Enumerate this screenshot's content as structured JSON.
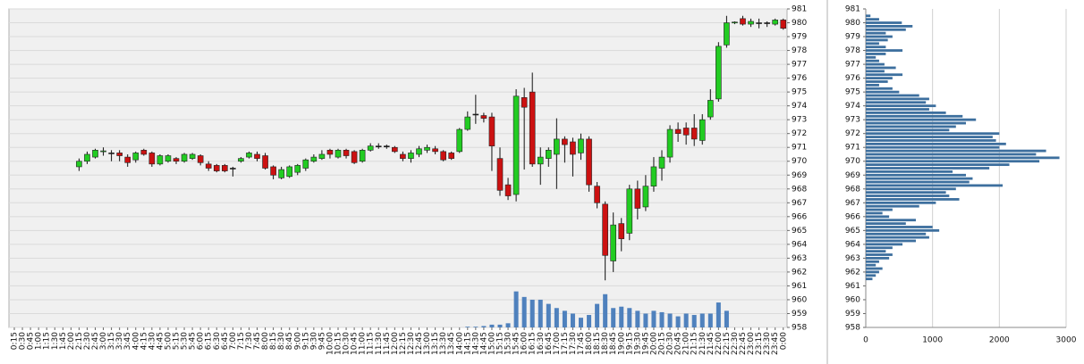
{
  "chart_data": [
    {
      "type": "candlestick",
      "x": [
        "0:15",
        "0:30",
        "0:45",
        "1:00",
        "1:15",
        "1:30",
        "1:45",
        "2:00",
        "2:15",
        "2:30",
        "2:45",
        "3:00",
        "3:15",
        "3:30",
        "3:45",
        "4:00",
        "4:15",
        "4:30",
        "4:45",
        "5:00",
        "5:15",
        "5:30",
        "5:45",
        "6:00",
        "6:15",
        "6:30",
        "6:45",
        "7:00",
        "7:15",
        "7:30",
        "7:45",
        "8:00",
        "8:15",
        "8:30",
        "8:45",
        "9:00",
        "9:15",
        "9:30",
        "9:45",
        "10:00",
        "10:15",
        "10:30",
        "10:45",
        "11:00",
        "11:15",
        "11:30",
        "11:45",
        "12:00",
        "12:15",
        "12:30",
        "12:45",
        "13:00",
        "13:15",
        "13:30",
        "13:45",
        "14:00",
        "14:15",
        "14:30",
        "14:45",
        "15:00",
        "15:15",
        "15:30",
        "15:45",
        "16:00",
        "16:15",
        "16:30",
        "16:45",
        "17:00",
        "17:15",
        "17:30",
        "17:45",
        "18:00",
        "18:15",
        "18:30",
        "18:45",
        "19:00",
        "19:15",
        "19:30",
        "19:45",
        "20:00",
        "20:15",
        "20:30",
        "20:45",
        "21:00",
        "21:15",
        "21:30",
        "21:45",
        "22:00",
        "22:15",
        "22:30",
        "22:45",
        "23:00",
        "23:15",
        "23:30",
        "23:45",
        "0:00"
      ],
      "open": [
        null,
        null,
        null,
        null,
        null,
        null,
        null,
        null,
        969.6,
        970.0,
        970.3,
        970.7,
        970.6,
        970.6,
        970.3,
        970.1,
        970.8,
        970.6,
        969.8,
        970.0,
        970.2,
        970.0,
        970.2,
        970.4,
        969.8,
        969.7,
        969.7,
        969.5,
        970.0,
        970.3,
        970.5,
        970.4,
        969.6,
        968.8,
        968.9,
        969.2,
        969.5,
        970.0,
        970.2,
        970.8,
        970.3,
        970.8,
        970.7,
        970.0,
        970.8,
        971.1,
        971.1,
        971.0,
        970.5,
        970.2,
        970.5,
        970.8,
        970.9,
        970.7,
        970.6,
        970.7,
        972.3,
        973.4,
        973.3,
        973.2,
        970.2,
        968.3,
        967.6,
        974.6,
        975.0,
        969.8,
        970.2,
        970.5,
        971.6,
        971.4,
        970.6,
        971.6,
        968.2,
        966.9,
        962.8,
        965.5,
        964.8,
        968.0,
        966.7,
        968.2,
        969.5,
        970.3,
        972.3,
        972.4,
        972.4,
        971.5,
        973.2,
        974.5,
        978.4,
        980.0,
        980.3,
        979.9,
        980.0,
        980.0,
        979.9,
        980.2
      ],
      "high": [
        null,
        null,
        null,
        null,
        null,
        null,
        null,
        null,
        970.2,
        970.7,
        970.9,
        971.0,
        970.8,
        970.8,
        970.5,
        970.7,
        970.9,
        970.7,
        970.5,
        970.5,
        970.3,
        970.6,
        970.6,
        970.5,
        970.0,
        969.8,
        969.8,
        969.6,
        970.3,
        970.7,
        970.7,
        970.6,
        969.7,
        969.6,
        969.7,
        969.8,
        970.2,
        970.5,
        970.8,
        970.9,
        970.9,
        970.9,
        970.8,
        970.9,
        971.3,
        971.3,
        971.2,
        971.1,
        970.7,
        970.8,
        971.1,
        971.2,
        971.1,
        970.8,
        970.7,
        972.4,
        973.6,
        974.8,
        973.5,
        973.5,
        971.0,
        968.8,
        975.2,
        975.3,
        976.4,
        971.0,
        971.0,
        973.1,
        971.8,
        971.7,
        972.0,
        971.8,
        968.5,
        967.1,
        966.3,
        965.9,
        968.3,
        968.6,
        969.0,
        970.3,
        970.8,
        972.6,
        972.8,
        972.8,
        973.4,
        973.4,
        975.2,
        978.6,
        980.5,
        980.1,
        980.5,
        980.3,
        980.3,
        980.1,
        980.3,
        980.3
      ],
      "low": [
        null,
        null,
        null,
        null,
        null,
        null,
        null,
        null,
        969.3,
        969.8,
        970.2,
        970.4,
        970.0,
        970.0,
        969.6,
        969.9,
        970.4,
        969.6,
        969.7,
        969.9,
        969.8,
        969.9,
        970.1,
        969.7,
        969.3,
        969.2,
        969.2,
        968.9,
        969.9,
        970.2,
        970.0,
        969.4,
        968.7,
        968.7,
        968.8,
        969.0,
        969.3,
        969.9,
        970.1,
        970.2,
        970.2,
        970.2,
        969.8,
        969.9,
        970.7,
        970.9,
        970.9,
        970.6,
        970.0,
        969.9,
        970.3,
        970.6,
        970.5,
        970.0,
        970.1,
        970.6,
        972.2,
        972.7,
        972.8,
        969.3,
        967.5,
        967.2,
        967.1,
        969.4,
        969.6,
        968.3,
        969.6,
        968.0,
        969.9,
        968.9,
        970.1,
        967.8,
        966.6,
        961.4,
        962.0,
        963.5,
        964.3,
        965.8,
        966.4,
        967.8,
        968.6,
        969.9,
        971.4,
        971.2,
        971.1,
        971.2,
        973.0,
        974.3,
        978.2,
        979.9,
        979.8,
        979.7,
        979.6,
        979.7,
        979.8,
        979.5
      ],
      "close": [
        null,
        null,
        null,
        null,
        null,
        null,
        null,
        null,
        970.0,
        970.5,
        970.8,
        970.75,
        970.6,
        970.4,
        969.9,
        970.6,
        970.5,
        969.8,
        970.4,
        970.4,
        970.0,
        970.5,
        970.5,
        969.9,
        969.5,
        969.3,
        969.3,
        969.5,
        970.2,
        970.6,
        970.2,
        969.5,
        969.0,
        969.4,
        969.6,
        969.7,
        970.1,
        970.3,
        970.5,
        970.5,
        970.8,
        970.4,
        969.9,
        970.8,
        971.1,
        971.1,
        971.1,
        970.7,
        970.2,
        970.6,
        970.9,
        971.0,
        970.7,
        970.1,
        970.2,
        972.3,
        973.2,
        973.4,
        973.1,
        971.1,
        967.9,
        967.5,
        974.7,
        973.9,
        969.8,
        970.3,
        970.8,
        971.6,
        971.2,
        970.5,
        971.6,
        968.3,
        967.0,
        963.2,
        965.4,
        964.4,
        968.0,
        966.6,
        968.2,
        969.6,
        970.3,
        972.3,
        972.0,
        971.9,
        971.6,
        973.0,
        974.4,
        978.3,
        980.0,
        980.05,
        979.9,
        980.1,
        980.0,
        980.0,
        980.2,
        979.6
      ],
      "volume": [
        null,
        null,
        null,
        null,
        null,
        null,
        null,
        null,
        null,
        null,
        null,
        null,
        null,
        null,
        null,
        null,
        null,
        null,
        null,
        null,
        null,
        null,
        null,
        null,
        null,
        null,
        null,
        null,
        null,
        null,
        null,
        null,
        null,
        null,
        null,
        null,
        null,
        null,
        null,
        null,
        null,
        null,
        null,
        null,
        null,
        null,
        null,
        null,
        null,
        null,
        null,
        null,
        null,
        null,
        null,
        null,
        958.05,
        958.05,
        958.1,
        958.2,
        958.2,
        958.3,
        960.6,
        960.2,
        960.0,
        960.0,
        959.7,
        959.4,
        959.2,
        959.0,
        958.7,
        958.9,
        959.7,
        960.4,
        959.4,
        959.5,
        959.4,
        959.2,
        959.0,
        959.2,
        959.1,
        959.0,
        958.8,
        959.0,
        958.9,
        959.0,
        959.0,
        959.8,
        959.2,
        null,
        null,
        null,
        null,
        null,
        null,
        null
      ],
      "up_color": "#22cc22",
      "down_color": "#cc1111",
      "volume_color": "#4f81bd",
      "ylim": [
        958,
        981
      ],
      "yticks": [
        958,
        959,
        960,
        961,
        962,
        963,
        964,
        965,
        966,
        967,
        968,
        969,
        970,
        971,
        972,
        973,
        974,
        975,
        976,
        977,
        978,
        979,
        980,
        981
      ],
      "grid": true
    },
    {
      "type": "barh",
      "y": [
        980.5,
        980.25,
        980,
        979.75,
        979.5,
        979.25,
        979,
        978.75,
        978.5,
        978.25,
        978,
        977.75,
        977.5,
        977.25,
        977,
        976.75,
        976.5,
        976.25,
        976,
        975.75,
        975.5,
        975.25,
        975,
        974.75,
        974.5,
        974.25,
        974,
        973.75,
        973.5,
        973.25,
        973,
        972.75,
        972.5,
        972.25,
        972,
        971.75,
        971.5,
        971.25,
        971,
        970.75,
        970.5,
        970.25,
        970,
        969.75,
        969.5,
        969.25,
        969,
        968.75,
        968.5,
        968.25,
        968,
        967.75,
        967.5,
        967.25,
        967,
        966.75,
        966.5,
        966.25,
        966,
        965.75,
        965.5,
        965.25,
        965,
        964.75,
        964.5,
        964.25,
        964,
        963.75,
        963.5,
        963.25,
        963,
        962.75,
        962.5,
        962.25,
        962,
        961.75,
        961.5
      ],
      "values": [
        70,
        200,
        540,
        700,
        600,
        300,
        400,
        330,
        200,
        300,
        550,
        300,
        150,
        200,
        280,
        450,
        280,
        550,
        400,
        330,
        200,
        400,
        500,
        800,
        950,
        900,
        1050,
        950,
        1200,
        1450,
        1650,
        1500,
        1350,
        1250,
        2000,
        1900,
        1950,
        2100,
        2000,
        2700,
        2550,
        2900,
        2600,
        2150,
        1850,
        1300,
        1500,
        1600,
        1550,
        2050,
        1350,
        1200,
        1250,
        1400,
        1050,
        800,
        400,
        250,
        350,
        750,
        600,
        1000,
        1100,
        900,
        950,
        750,
        550,
        400,
        300,
        400,
        350,
        200,
        150,
        250,
        200,
        150,
        100
      ],
      "color": "#3d6f9e",
      "xlim": [
        0,
        3000
      ],
      "xticks": [
        0,
        1000,
        2000,
        3000
      ],
      "ylim": [
        958,
        981
      ],
      "yticks": [
        958,
        959,
        960,
        961,
        962,
        963,
        964,
        965,
        966,
        967,
        968,
        969,
        970,
        971,
        972,
        973,
        974,
        975,
        976,
        977,
        978,
        979,
        980,
        981
      ],
      "grid": true
    }
  ]
}
